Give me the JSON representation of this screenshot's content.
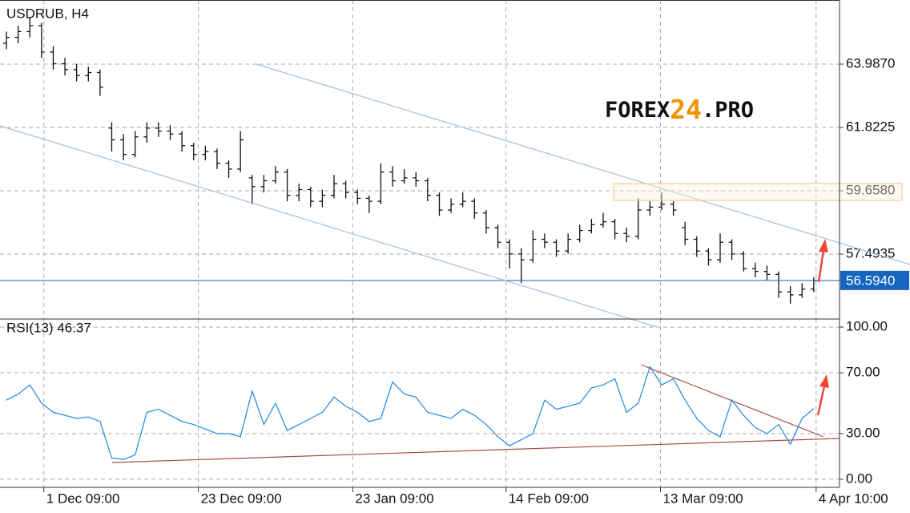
{
  "chart_data": [
    {
      "type": "ohlc",
      "title": "USDRUB, H4",
      "watermark": [
        "FOREX",
        "24",
        ".PRO"
      ],
      "x": [
        0,
        1,
        2,
        3,
        4,
        5,
        6,
        7,
        8,
        9,
        10,
        11,
        12,
        13,
        14,
        15,
        16,
        17,
        18,
        19,
        20,
        21,
        22,
        23,
        24,
        25,
        26,
        27,
        28,
        29,
        30,
        31,
        32,
        33,
        34,
        35,
        36,
        37,
        38,
        39,
        40,
        41,
        42,
        43,
        44,
        45,
        46,
        47,
        48,
        49,
        50,
        51,
        52,
        53,
        54,
        55,
        56,
        57,
        58,
        59,
        60,
        61,
        62,
        63,
        64,
        65,
        66,
        67,
        68,
        69
      ],
      "open": [
        64.7,
        64.9,
        65.1,
        65.3,
        64.4,
        64.0,
        63.8,
        63.6,
        63.7,
        61.8,
        61.4,
        60.9,
        61.5,
        61.8,
        61.7,
        61.6,
        61.2,
        60.9,
        61.0,
        60.6,
        60.4,
        60.1,
        59.8,
        60.0,
        60.3,
        59.5,
        59.7,
        59.3,
        59.5,
        59.9,
        59.6,
        59.4,
        59.3,
        60.3,
        60.0,
        60.1,
        60.0,
        59.5,
        59.0,
        59.2,
        59.3,
        58.9,
        58.4,
        57.9,
        57.5,
        57.3,
        58.0,
        57.9,
        57.6,
        58.0,
        58.3,
        58.5,
        58.6,
        58.2,
        58.1,
        59.0,
        59.1,
        59.2,
        58.4,
        58.0,
        57.6,
        57.3,
        57.9,
        57.5,
        57.0,
        56.9,
        56.8,
        56.2,
        56.1,
        56.3
      ],
      "high": [
        65.1,
        65.3,
        65.6,
        65.4,
        64.6,
        64.2,
        64.0,
        63.9,
        63.8,
        62.0,
        61.6,
        61.7,
        62.0,
        62.0,
        61.9,
        61.7,
        61.3,
        61.2,
        61.1,
        60.7,
        61.7,
        60.2,
        60.2,
        60.5,
        60.4,
        59.9,
        59.8,
        59.7,
        60.2,
        60.0,
        59.7,
        59.5,
        60.6,
        60.5,
        60.4,
        60.3,
        60.1,
        59.6,
        59.4,
        59.6,
        59.4,
        59.0,
        58.5,
        58.0,
        57.7,
        58.3,
        58.2,
        58.0,
        58.2,
        58.5,
        58.7,
        58.9,
        58.7,
        58.4,
        59.4,
        59.3,
        59.6,
        59.3,
        58.6,
        58.1,
        57.7,
        58.2,
        58.0,
        57.6,
        57.2,
        57.1,
        56.9,
        56.4,
        56.5,
        56.7
      ],
      "low": [
        64.5,
        64.7,
        64.9,
        64.2,
        63.8,
        63.6,
        63.4,
        63.4,
        62.9,
        61.0,
        60.7,
        60.8,
        61.3,
        61.5,
        61.4,
        61.0,
        60.7,
        60.7,
        60.4,
        60.1,
        60.3,
        59.2,
        59.6,
        59.9,
        59.3,
        59.3,
        59.1,
        59.1,
        59.4,
        59.4,
        59.2,
        58.9,
        59.2,
        59.8,
        59.9,
        59.8,
        59.3,
        58.8,
        58.9,
        59.1,
        58.7,
        58.2,
        57.7,
        57.0,
        56.5,
        57.2,
        57.7,
        57.4,
        57.5,
        57.9,
        58.2,
        58.4,
        58.0,
        57.9,
        58.0,
        58.8,
        59.0,
        58.8,
        57.8,
        57.4,
        57.1,
        57.2,
        57.3,
        56.9,
        56.7,
        56.6,
        56.0,
        55.8,
        56.0,
        56.2
      ],
      "close": [
        64.9,
        65.1,
        65.3,
        64.4,
        64.0,
        63.8,
        63.6,
        63.7,
        63.2,
        61.4,
        60.9,
        61.5,
        61.8,
        61.7,
        61.6,
        61.2,
        60.9,
        61.0,
        60.6,
        60.4,
        61.4,
        59.8,
        60.0,
        60.3,
        59.5,
        59.7,
        59.3,
        59.5,
        59.9,
        59.6,
        59.4,
        59.3,
        60.3,
        60.0,
        60.1,
        60.0,
        59.5,
        59.0,
        59.2,
        59.3,
        58.9,
        58.4,
        57.9,
        57.5,
        57.3,
        58.0,
        57.9,
        57.6,
        58.0,
        58.3,
        58.5,
        58.6,
        58.2,
        58.1,
        59.0,
        59.1,
        59.2,
        59.0,
        58.0,
        57.6,
        57.3,
        57.9,
        57.5,
        57.0,
        56.9,
        56.8,
        56.2,
        56.1,
        56.3,
        56.594
      ],
      "color": "#111111",
      "current_price": {
        "value": 56.594,
        "label": "56.5940"
      },
      "current_color": "#1565c0",
      "xlim": [
        -0.55,
        71.2
      ],
      "ylim": [
        55.275,
        66.179
      ],
      "yticks": [
        {
          "value": 57.4935,
          "label": "57.4935"
        },
        {
          "value": 59.658,
          "label": "59.6580"
        },
        {
          "value": 61.8225,
          "label": "61.8225"
        },
        {
          "value": 63.987,
          "label": "63.9870"
        }
      ],
      "grid": true
    },
    {
      "type": "line",
      "title": "RSI(13) 46.37",
      "x": [
        0,
        1,
        2,
        3,
        4,
        5,
        6,
        7,
        8,
        9,
        10,
        11,
        12,
        13,
        14,
        15,
        16,
        17,
        18,
        19,
        20,
        21,
        22,
        23,
        24,
        25,
        26,
        27,
        28,
        29,
        30,
        31,
        32,
        33,
        34,
        35,
        36,
        37,
        38,
        39,
        40,
        41,
        42,
        43,
        44,
        45,
        46,
        47,
        48,
        49,
        50,
        51,
        52,
        53,
        54,
        55,
        56,
        57,
        58,
        59,
        60,
        61,
        62,
        63,
        64,
        65,
        66,
        67,
        68,
        69
      ],
      "values": [
        52,
        56,
        62,
        50,
        44,
        42,
        40,
        41,
        38,
        14,
        13,
        16,
        44,
        46,
        42,
        38,
        36,
        33,
        30,
        30,
        28,
        58,
        36,
        50,
        32,
        36,
        40,
        44,
        54,
        48,
        44,
        38,
        40,
        64,
        56,
        54,
        44,
        42,
        40,
        46,
        42,
        36,
        28,
        22,
        26,
        30,
        52,
        46,
        48,
        50,
        60,
        62,
        66,
        44,
        50,
        74,
        62,
        66,
        52,
        40,
        32,
        28,
        52,
        42,
        34,
        30,
        36,
        23,
        40,
        46.37
      ],
      "color": "#1e88e5",
      "xlim": [
        -0.55,
        71.2
      ],
      "ylim": [
        -5.3,
        105.3
      ],
      "yticks": [
        {
          "value": 0,
          "label": "0.00"
        },
        {
          "value": 30,
          "label": "30.00"
        },
        {
          "value": 70,
          "label": "70.00"
        },
        {
          "value": 100,
          "label": "100.00"
        }
      ],
      "xticks": [
        {
          "value": 3.2,
          "label": "1 Dec 09:00"
        },
        {
          "value": 16.4,
          "label": "23 Dec 09:00"
        },
        {
          "value": 29.6,
          "label": "23 Jan 09:00"
        },
        {
          "value": 42.7,
          "label": "14 Feb 09:00"
        },
        {
          "value": 55.9,
          "label": "13 Mar 09:00"
        },
        {
          "value": 69.2,
          "label": "4 Apr 10:00"
        }
      ],
      "grid": true
    }
  ]
}
